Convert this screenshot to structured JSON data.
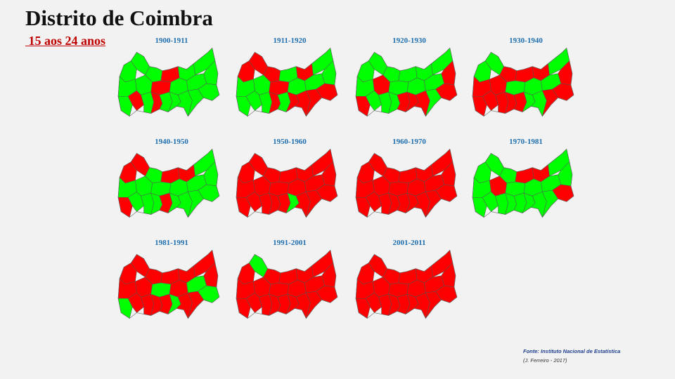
{
  "header": {
    "title": "Distrito de Coimbra",
    "subtitle": " 15 aos 24 anos"
  },
  "legend_colors": {
    "increase": "#00ff00",
    "decrease": "#ff0000"
  },
  "panels": [
    {
      "period": "1900-1911",
      "red_share": 0.35
    },
    {
      "period": "1911-1920",
      "red_share": 0.55
    },
    {
      "period": "1920-1930",
      "red_share": 0.2
    },
    {
      "period": "1930-1940",
      "red_share": 0.5
    },
    {
      "period": "1940-1950",
      "red_share": 0.45
    },
    {
      "period": "1950-1960",
      "red_share": 0.92
    },
    {
      "period": "1960-1970",
      "red_share": 1.0
    },
    {
      "period": "1970-1981",
      "red_share": 0.2
    },
    {
      "period": "1981-1991",
      "red_share": 0.65
    },
    {
      "period": "1991-2001",
      "red_share": 0.9
    },
    {
      "period": "2001-2011",
      "red_share": 1.0
    }
  ],
  "footer": {
    "source": "Fonte: Instituto Nacional de Estatística",
    "credit": "(J. Ferreiro - 2017)"
  }
}
